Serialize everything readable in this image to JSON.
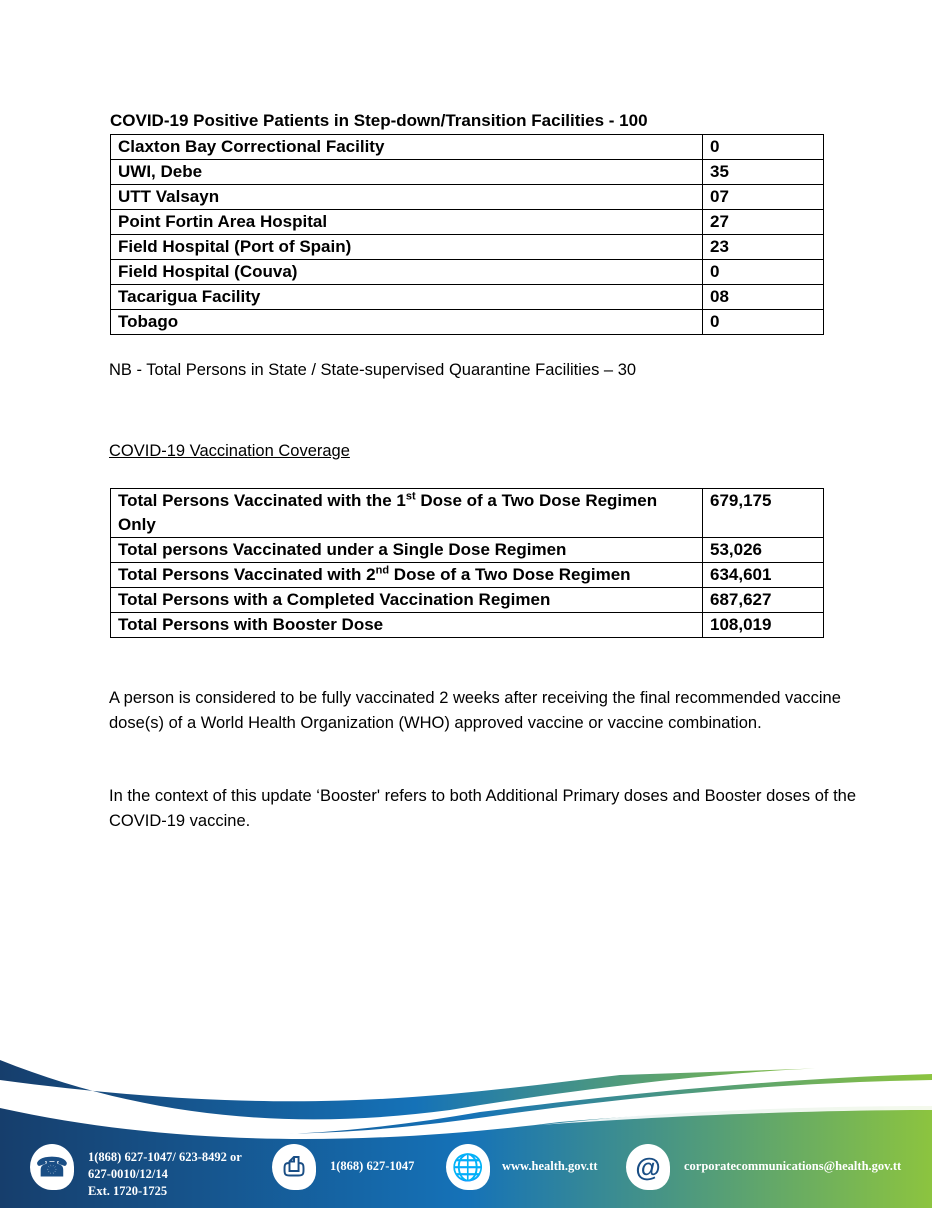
{
  "facilities": {
    "title": "COVID-19 Positive Patients in Step-down/Transition Facilities - 100",
    "rows": [
      {
        "name": "Claxton Bay Correctional Facility",
        "value": "0"
      },
      {
        "name": "UWI, Debe",
        "value": "35"
      },
      {
        "name": "UTT Valsayn",
        "value": "07"
      },
      {
        "name": "Point Fortin Area Hospital",
        "value": "27"
      },
      {
        "name": "Field Hospital (Port of Spain)",
        "value": "23"
      },
      {
        "name": "Field Hospital (Couva)",
        "value": "0"
      },
      {
        "name": "Tacarigua Facility",
        "value": "08"
      },
      {
        "name": "Tobago",
        "value": "0"
      }
    ]
  },
  "quarantine_note": "NB - Total Persons in State / State-supervised Quarantine Facilities – 30",
  "vaccination": {
    "heading": "COVID-19 Vaccination Coverage",
    "rows": [
      {
        "pre": "Total Persons Vaccinated with the 1",
        "sup": "st",
        "post": " Dose of a Two Dose Regimen Only",
        "value": "679,175"
      },
      {
        "pre": "Total persons Vaccinated under a Single Dose Regimen",
        "sup": "",
        "post": "",
        "value": "53,026"
      },
      {
        "pre": "Total Persons Vaccinated with 2",
        "sup": "nd",
        "post": " Dose of a Two Dose Regimen",
        "value": "634,601"
      },
      {
        "pre": "Total Persons with a Completed Vaccination Regimen",
        "sup": "",
        "post": "",
        "value": "687,627"
      },
      {
        "pre": "Total Persons with Booster Dose",
        "sup": "",
        "post": "",
        "value": "108,019"
      }
    ]
  },
  "paragraphs": [
    "A person is considered to be fully vaccinated 2 weeks after receiving the final recommended vaccine dose(s) of a  World Health Organization (WHO) approved vaccine or vaccine combination.",
    "In the context of this update ‘Booster' refers to both Additional Primary doses and Booster doses of the COVID-19 vaccine."
  ],
  "footer": {
    "phone_lines": [
      "1(868) 627-1047/ 623-8492 or",
      "627-0010/12/14",
      "Ext. 1720-1725"
    ],
    "fax": "1(868) 627-1047",
    "website": "www.health.gov.tt",
    "email": "corporatecommunications@health.gov.tt",
    "colors": {
      "dark_blue": "#163e6c",
      "blue": "#1a72b8",
      "green": "#8cc43f"
    }
  }
}
